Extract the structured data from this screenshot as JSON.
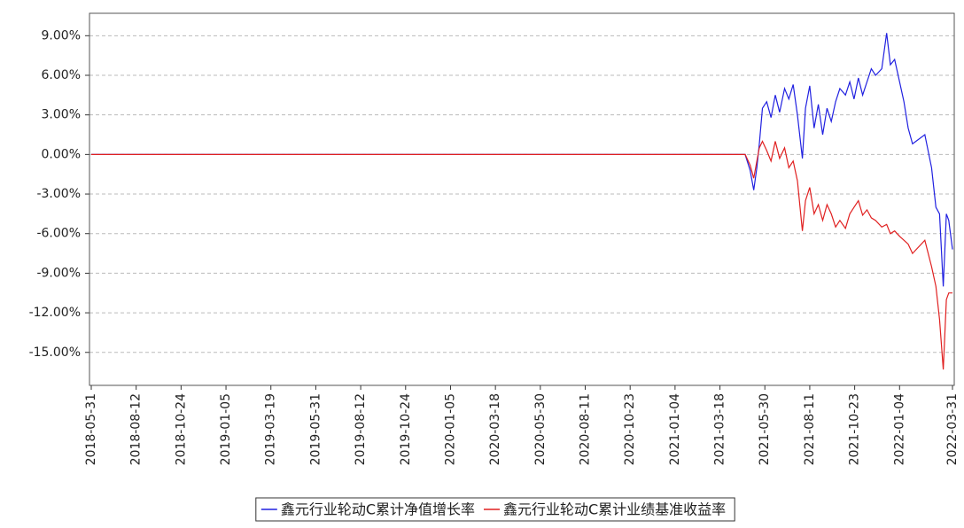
{
  "chart_data": {
    "type": "line",
    "x": [
      "2018-05-31",
      "2021-04-28",
      "2021-05-06",
      "2021-05-12",
      "2021-05-17",
      "2021-05-21",
      "2021-05-26",
      "2021-06-02",
      "2021-06-09",
      "2021-06-16",
      "2021-06-23",
      "2021-07-01",
      "2021-07-08",
      "2021-07-15",
      "2021-07-22",
      "2021-07-30",
      "2021-08-04",
      "2021-08-11",
      "2021-08-18",
      "2021-08-25",
      "2021-09-01",
      "2021-09-08",
      "2021-09-15",
      "2021-09-22",
      "2021-09-29",
      "2021-10-08",
      "2021-10-15",
      "2021-10-22",
      "2021-10-29",
      "2021-11-05",
      "2021-11-12",
      "2021-11-19",
      "2021-11-26",
      "2021-12-06",
      "2021-12-14",
      "2021-12-20",
      "2021-12-27",
      "2022-01-04",
      "2022-01-11",
      "2022-01-18",
      "2022-01-25",
      "2022-02-14",
      "2022-02-25",
      "2022-03-04",
      "2022-03-10",
      "2022-03-16",
      "2022-03-21",
      "2022-03-25",
      "2022-03-31"
    ],
    "series": [
      {
        "name": "鑫元行业轮动C累计净值增长率",
        "color": "#2020e0",
        "values": [
          0,
          0,
          -1.2,
          -2.7,
          -1.0,
          0.8,
          3.5,
          4.0,
          2.8,
          4.5,
          3.2,
          5.0,
          4.2,
          5.3,
          3.0,
          -0.3,
          3.5,
          5.2,
          2.0,
          3.8,
          1.5,
          3.5,
          2.5,
          4.0,
          5.0,
          4.5,
          5.5,
          4.2,
          5.8,
          4.5,
          5.5,
          6.5,
          6.0,
          6.5,
          9.2,
          6.8,
          7.2,
          5.5,
          4.0,
          2.0,
          0.8,
          1.5,
          -1.0,
          -4.0,
          -4.5,
          -10.0,
          -4.5,
          -5.0,
          -7.2
        ]
      },
      {
        "name": "鑫元行业轮动C累计业绩基准收益率",
        "color": "#e02020",
        "values": [
          0,
          0,
          -0.8,
          -1.8,
          -0.5,
          0.5,
          1.0,
          0.3,
          -0.5,
          1.0,
          -0.3,
          0.5,
          -1.0,
          -0.5,
          -2.0,
          -5.8,
          -3.5,
          -2.5,
          -4.5,
          -3.8,
          -5.0,
          -3.8,
          -4.5,
          -5.5,
          -5.0,
          -5.6,
          -4.5,
          -4.0,
          -3.5,
          -4.6,
          -4.2,
          -4.8,
          -5.0,
          -5.5,
          -5.3,
          -6.0,
          -5.8,
          -6.2,
          -6.5,
          -6.8,
          -7.5,
          -6.5,
          -8.5,
          -10.0,
          -12.5,
          -16.3,
          -11.0,
          -10.5,
          -10.5
        ]
      }
    ],
    "xlim": [
      "2018-05-31",
      "2022-03-31"
    ],
    "xticks": [
      "2018-05-31",
      "2018-08-12",
      "2018-10-24",
      "2019-01-05",
      "2019-03-19",
      "2019-05-31",
      "2019-08-12",
      "2019-10-24",
      "2020-01-05",
      "2020-03-18",
      "2020-05-30",
      "2020-08-11",
      "2020-10-23",
      "2021-01-04",
      "2021-03-18",
      "2021-05-30",
      "2021-08-11",
      "2021-10-23",
      "2022-01-04",
      "2022-03-31"
    ],
    "ylim": [
      -17.5,
      10.7
    ],
    "yticks": [
      {
        "value": 9,
        "label": "9.00%"
      },
      {
        "value": 6,
        "label": "6.00%"
      },
      {
        "value": 3,
        "label": "3.00%"
      },
      {
        "value": 0,
        "label": "0.00%"
      },
      {
        "value": -3,
        "label": "-3.00%"
      },
      {
        "value": -6,
        "label": "-6.00%"
      },
      {
        "value": -9,
        "label": "-9.00%"
      },
      {
        "value": -12,
        "label": "-12.00%"
      },
      {
        "value": -15,
        "label": "-15.00%"
      }
    ],
    "grid": true,
    "legend": "bottom"
  }
}
